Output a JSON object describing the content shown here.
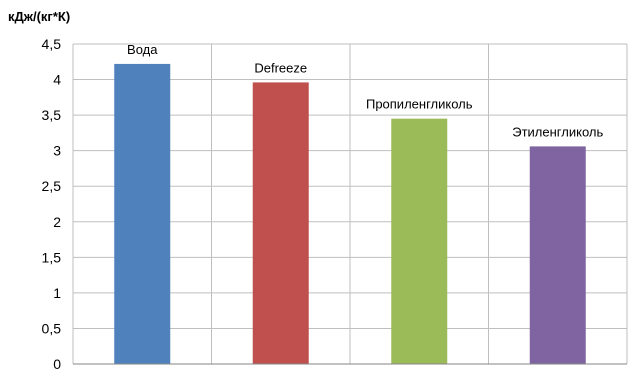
{
  "chart_data": {
    "type": "bar",
    "ylabel": "кДж/(кг*К)",
    "categories": [
      "Вода",
      "Defreeze",
      "Пропиленгликоль",
      "Этиленгликоль"
    ],
    "values": [
      4.22,
      3.96,
      3.45,
      3.06
    ],
    "colors": [
      "#4f81bd",
      "#c0504d",
      "#9bbb59",
      "#8064a2"
    ],
    "ylim": [
      0,
      4.5
    ],
    "yticks": [
      "0",
      "0,5",
      "1",
      "1,5",
      "2",
      "2,5",
      "3",
      "3,5",
      "4",
      "4,5"
    ],
    "grid": true,
    "legend": "none"
  }
}
